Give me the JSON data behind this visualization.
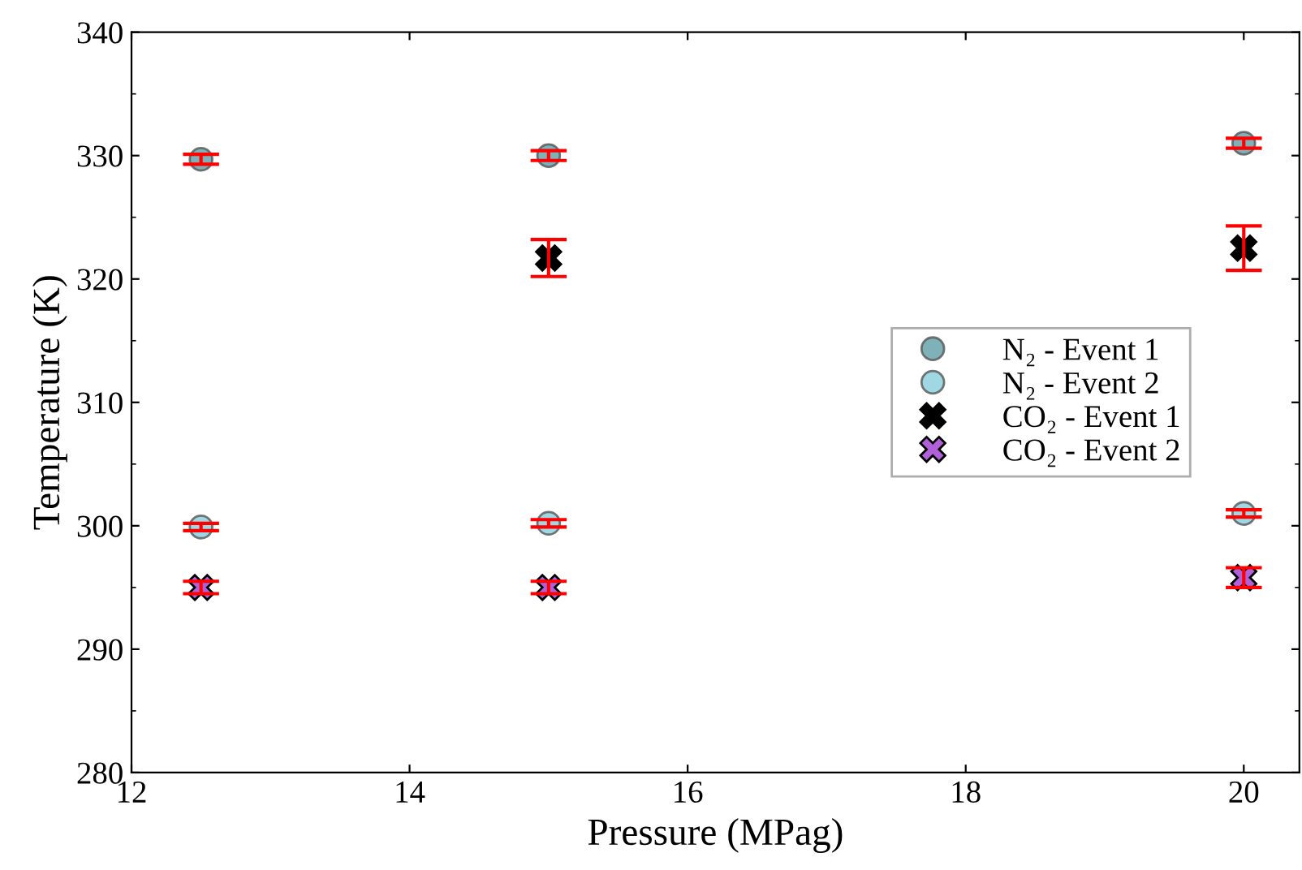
{
  "chart_data": {
    "type": "scatter",
    "xlabel": "Pressure (MPag)",
    "ylabel": "Temperature (K)",
    "xlim": [
      12,
      20.4
    ],
    "xticks": [
      12,
      14,
      16,
      18,
      20
    ],
    "ylim": [
      280,
      340
    ],
    "yticks": [
      280,
      290,
      300,
      310,
      320,
      330,
      340
    ],
    "grid": false,
    "legend": "right",
    "series": [
      {
        "name": "N₂ - Event 1",
        "color": "#5f9ea8",
        "marker": "circle",
        "x": [
          12.5,
          15,
          20
        ],
        "values": [
          329.7,
          330.0,
          331.0
        ],
        "errors": [
          0.4,
          0.4,
          0.4
        ]
      },
      {
        "name": "N₂ - Event 2",
        "color": "#87cedc",
        "marker": "circle",
        "x": [
          12.5,
          15,
          20
        ],
        "values": [
          299.9,
          300.2,
          301.0
        ],
        "errors": [
          0.3,
          0.3,
          0.3
        ]
      },
      {
        "name": "CO₂ - Event 1",
        "color": "#000000",
        "marker": "cross",
        "x": [
          15,
          20
        ],
        "values": [
          321.7,
          322.5
        ],
        "errors": [
          1.5,
          1.8
        ]
      },
      {
        "name": "CO₂ - Event 2",
        "color": "#b060d8",
        "marker": "cross",
        "x": [
          12.5,
          15,
          20
        ],
        "values": [
          295.0,
          295.0,
          295.8
        ],
        "errors": [
          0.5,
          0.5,
          0.8
        ]
      }
    ]
  }
}
